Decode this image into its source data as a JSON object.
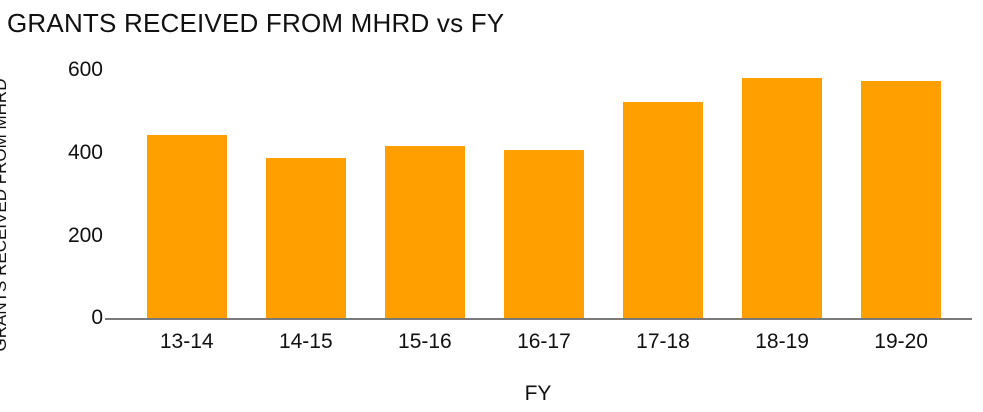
{
  "chart_data": {
    "type": "bar",
    "title": "GRANTS RECEIVED FROM MHRD vs FY",
    "xlabel": "FY",
    "ylabel": "GRANTS RECEIVED FROM MHRD",
    "categories": [
      "13-14",
      "14-15",
      "15-16",
      "16-17",
      "17-18",
      "18-19",
      "19-20"
    ],
    "values": [
      445,
      390,
      418,
      408,
      525,
      583,
      576
    ],
    "yticks": [
      0,
      200,
      400,
      600
    ],
    "ylim": [
      0,
      600
    ],
    "bar_color": "#FFA000",
    "axis_line_color": "#7A7A7A",
    "text_color": "#111111",
    "background": "#FFFFFF",
    "grid": false,
    "legend": false,
    "orientation": "vertical"
  }
}
